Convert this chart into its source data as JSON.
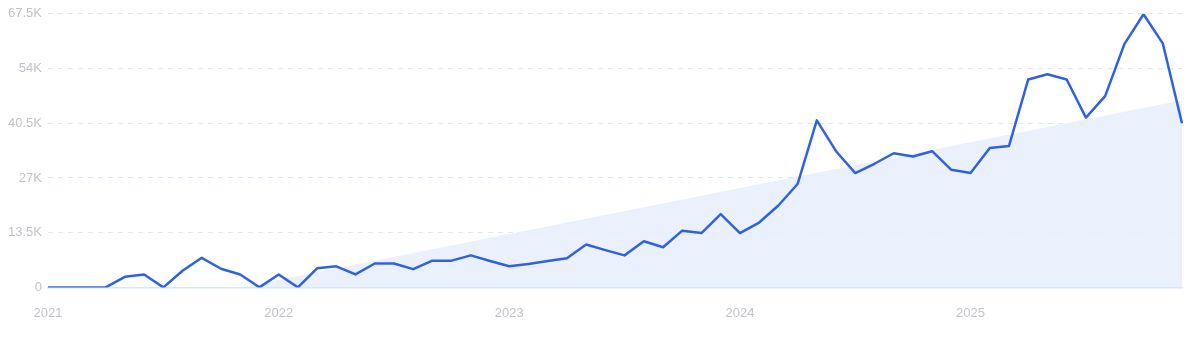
{
  "chart_data": {
    "type": "line",
    "categories": [
      "2021",
      null,
      null,
      null,
      null,
      null,
      null,
      null,
      null,
      null,
      null,
      null,
      "2022",
      null,
      null,
      null,
      null,
      null,
      null,
      null,
      null,
      null,
      null,
      null,
      "2023",
      null,
      null,
      null,
      null,
      null,
      null,
      null,
      null,
      null,
      null,
      null,
      "2024",
      null,
      null,
      null,
      null,
      null,
      null,
      null,
      null,
      null,
      null,
      null,
      "2025",
      null,
      null,
      null,
      null,
      null,
      null,
      null,
      null,
      null,
      null,
      null
    ],
    "ylim": [
      0,
      67500
    ],
    "yticks": [
      {
        "value": 0,
        "label": "0"
      },
      {
        "value": 13500,
        "label": "13.5K"
      },
      {
        "value": 27000,
        "label": "27K"
      },
      {
        "value": 40500,
        "label": "40.5K"
      },
      {
        "value": 54000,
        "label": "54K"
      },
      {
        "value": 67500,
        "label": "67.5K"
      }
    ],
    "grid": "y",
    "legend": false,
    "marker": "none",
    "line_style": "solid",
    "series": [
      {
        "type": "area",
        "color": "#e6effc",
        "values": [
          null,
          null,
          null,
          null,
          null,
          null,
          null,
          null,
          null,
          null,
          0,
          null,
          null,
          null,
          null,
          null,
          null,
          null,
          null,
          null,
          null,
          null,
          null,
          null,
          null,
          null,
          null,
          null,
          null,
          null,
          null,
          null,
          null,
          null,
          null,
          null,
          null,
          null,
          null,
          null,
          null,
          null,
          null,
          null,
          null,
          null,
          null,
          null,
          null,
          null,
          null,
          null,
          null,
          null,
          null,
          null,
          null,
          null,
          null,
          46200
        ]
      },
      {
        "color": "#2f62e3",
        "values": [
          0,
          0,
          0,
          0,
          2600,
          3200,
          0,
          4100,
          7300,
          4600,
          3200,
          0,
          3200,
          0,
          4700,
          5200,
          3200,
          5900,
          5900,
          4500,
          6600,
          6600,
          7900,
          6500,
          5200,
          5800,
          6500,
          7200,
          10600,
          9200,
          7900,
          11400,
          9900,
          14000,
          13400,
          18100,
          13400,
          16000,
          20200,
          25500,
          41200,
          33600,
          28200,
          30500,
          33100,
          32300,
          33600,
          29000,
          28200,
          34400,
          34900,
          51300,
          52600,
          51300,
          41900,
          47200,
          60000,
          67400,
          60200,
          40500
        ]
      }
    ]
  }
}
